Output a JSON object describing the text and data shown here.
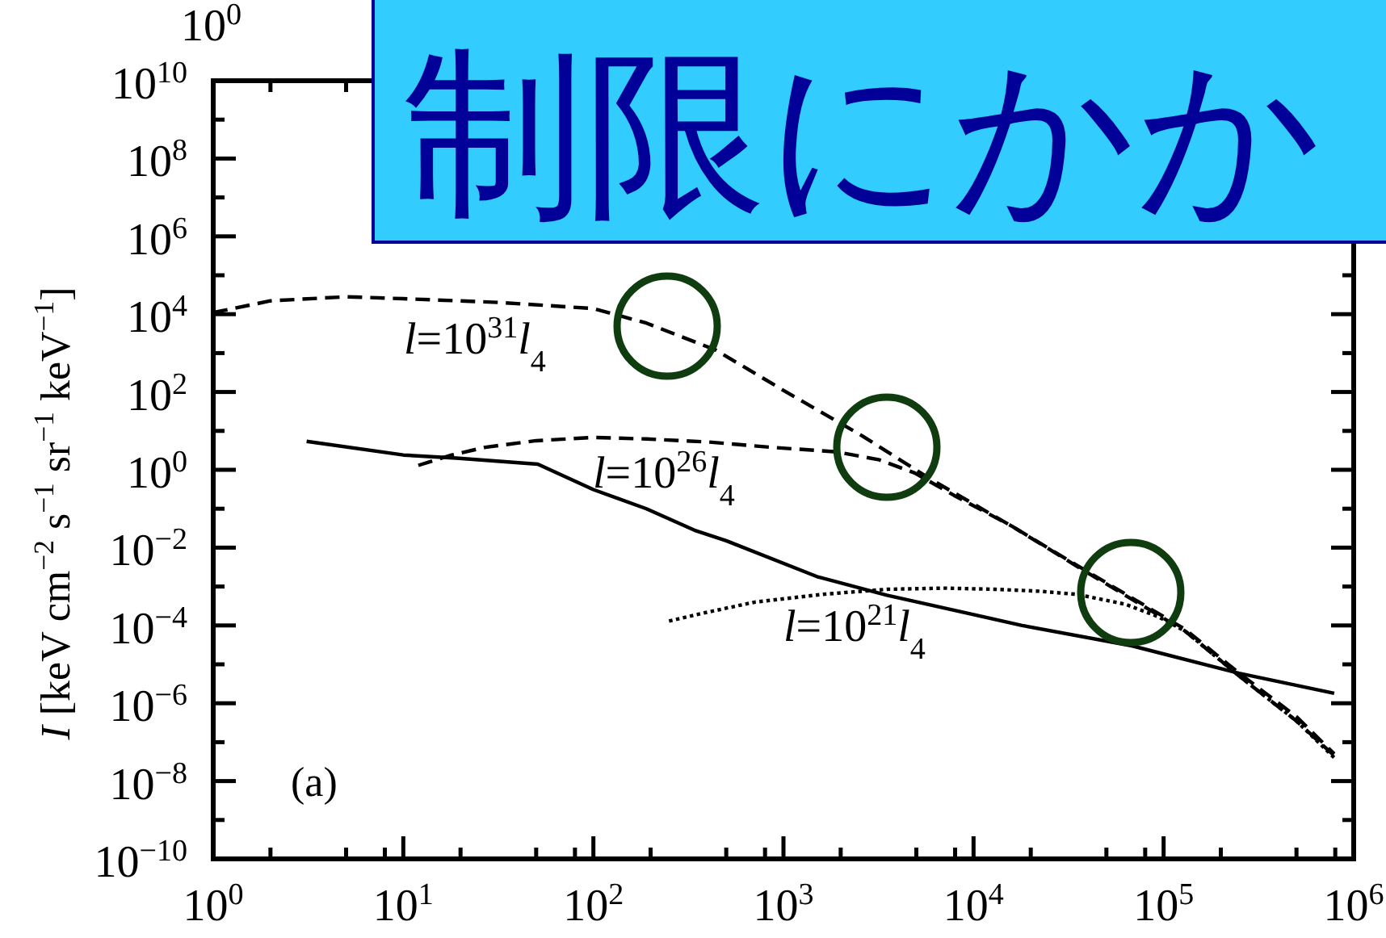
{
  "chart_data": {
    "type": "line",
    "ylabel": "*I* [keV cm$^{−2}$ s$^{−1}$ sr$^{−1}$ keV$^{−1}$]",
    "annotations": [
      "(a)",
      "制限にかか",
      "10$^{0}$"
    ],
    "log": "xy",
    "xlim": [
      1,
      1000000.0
    ],
    "ylim": [
      1e-10,
      10000000000.0
    ],
    "xticks": [
      {
        "value": 1,
        "label": "10$^{0}$"
      },
      {
        "value": 2,
        "label": null
      },
      {
        "value": 5,
        "label": null
      },
      {
        "value": 8,
        "label": null
      },
      {
        "value": 10,
        "label": "10$^{1}$"
      },
      {
        "value": 20,
        "label": null
      },
      {
        "value": 50,
        "label": null
      },
      {
        "value": 80,
        "label": null
      },
      {
        "value": 100,
        "label": "10$^{2}$"
      },
      {
        "value": 200,
        "label": null
      },
      {
        "value": 500,
        "label": null
      },
      {
        "value": 800,
        "label": null
      },
      {
        "value": 1000,
        "label": "10$^{3}$"
      },
      {
        "value": 2000,
        "label": null
      },
      {
        "value": 5000,
        "label": null
      },
      {
        "value": 8000,
        "label": null
      },
      {
        "value": 10000,
        "label": "10$^{4}$"
      },
      {
        "value": 20000,
        "label": null
      },
      {
        "value": 50000,
        "label": null
      },
      {
        "value": 80000,
        "label": null
      },
      {
        "value": 100000,
        "label": "10$^{5}$"
      },
      {
        "value": 200000,
        "label": null
      },
      {
        "value": 500000,
        "label": null
      },
      {
        "value": 800000,
        "label": null
      },
      {
        "value": 1000000,
        "label": "10$^{6}$"
      }
    ],
    "yticks": [
      {
        "value": 1e-10,
        "label": "10$^{−10}$"
      },
      {
        "value": 1e-09,
        "label": null
      },
      {
        "value": 1e-08,
        "label": "10$^{−8}$"
      },
      {
        "value": 1e-07,
        "label": null
      },
      {
        "value": 1e-06,
        "label": "10$^{−6}$"
      },
      {
        "value": 1e-05,
        "label": null
      },
      {
        "value": 0.0001,
        "label": "10$^{−4}$"
      },
      {
        "value": 0.001,
        "label": null
      },
      {
        "value": 0.01,
        "label": "10$^{−2}$"
      },
      {
        "value": 0.1,
        "label": null
      },
      {
        "value": 1,
        "label": "10$^{0}$"
      },
      {
        "value": 10,
        "label": null
      },
      {
        "value": 100,
        "label": "10$^{2}$"
      },
      {
        "value": 1000,
        "label": null
      },
      {
        "value": 10000,
        "label": "10$^{4}$"
      },
      {
        "value": 100000,
        "label": null
      },
      {
        "value": 1000000,
        "label": "10$^{6}$"
      },
      {
        "value": 10000000.0,
        "label": null
      },
      {
        "value": 100000000.0,
        "label": "10$^{8}$"
      },
      {
        "value": 1000000000.0,
        "label": null
      },
      {
        "value": 10000000000.0,
        "label": "10$^{10}$"
      }
    ],
    "series": [
      {
        "name": "*l*=10$^{31}$*l*$_{4}$",
        "color": "#000000",
        "line_style": "dashed",
        "x": [
          1,
          2,
          5,
          10,
          32,
          100,
          190,
          440,
          1000,
          2600,
          6000,
          16000,
          35000,
          130000,
          250000,
          500000,
          790000
        ],
        "values": [
          11000,
          22000,
          28000,
          25000,
          20000,
          14000,
          5900,
          1200,
          110,
          7.4,
          0.56,
          0.035,
          0.0035,
          7.9e-05,
          5.9e-06,
          4.5e-07,
          5e-08
        ]
      },
      {
        "name": "*l*=10$^{26}$*l*$_{4}$",
        "color": "#000000",
        "line_style": "dashed",
        "x": [
          12,
          18,
          27,
          50,
          100,
          190,
          400,
          850,
          1900,
          3200,
          4900,
          7900,
          16000,
          35000,
          130000,
          250000,
          500000,
          790000
        ],
        "values": [
          1.3,
          2.4,
          3.8,
          5.6,
          6.8,
          6.2,
          5.2,
          3.8,
          2.9,
          1.8,
          0.83,
          0.22,
          0.035,
          0.0033,
          7.1e-05,
          5e-06,
          3.5e-07,
          4.5e-08
        ]
      },
      {
        "name": "*l*=10$^{21}$*l*$_{4}$",
        "color": "#000000",
        "line_style": "dotted",
        "x": [
          250,
          400,
          710,
          1600,
          3500,
          7100,
          13000,
          22000,
          35000,
          63000,
          93000,
          130000,
          250000,
          500000,
          790000
        ],
        "values": [
          0.00013,
          0.00022,
          0.0004,
          0.00063,
          0.00085,
          0.00091,
          0.00085,
          0.00076,
          0.00063,
          0.00035,
          0.00017,
          7.1e-05,
          5e-06,
          3.5e-07,
          4e-08
        ]
      },
      {
        "color": "#000000",
        "line_style": "solid",
        "x": [
          3.1,
          10,
          19,
          51,
          100,
          190,
          340,
          500,
          1500,
          3500,
          18000,
          68000,
          250000,
          790000
        ],
        "values": [
          5.4,
          2.4,
          2.0,
          1.4,
          0.31,
          0.1,
          0.028,
          0.015,
          0.0018,
          0.0006,
          0.0001,
          3e-05,
          5.9e-06,
          1.8e-06
        ]
      }
    ]
  }
}
